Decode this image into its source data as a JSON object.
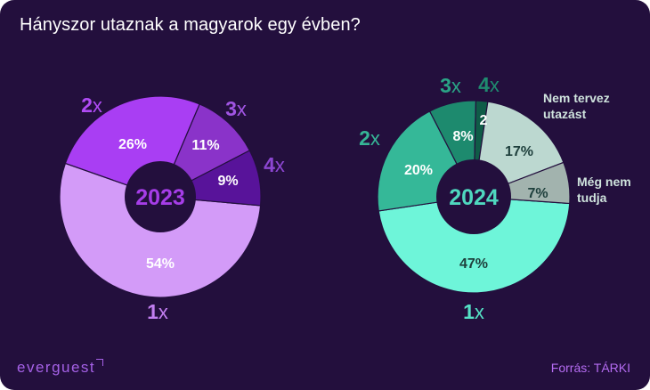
{
  "title": "Hányszor utaznak a magyarok egy évben?",
  "logo_text": "everguest",
  "source": "Forrás: TÁRKI",
  "chart_data": [
    {
      "type": "pie",
      "center_label": "2023",
      "hole": "dark",
      "slices": [
        {
          "category": "1x",
          "value": 54,
          "label": "54%",
          "color": "#d39bf8",
          "label_color": "#ffffff"
        },
        {
          "category": "2x",
          "value": 26,
          "label": "26%",
          "color": "#a93ef3",
          "label_color": "#ffffff"
        },
        {
          "category": "3x",
          "value": 11,
          "label": "11%",
          "color": "#8a33c9",
          "label_color": "#ffffff"
        },
        {
          "category": "4x",
          "value": 9,
          "label": "9%",
          "color": "#58139a",
          "label_color": "#ffffff"
        }
      ],
      "category_labels": [
        {
          "text_number": "1",
          "text_suffix": "x",
          "color": "#c27ef0"
        },
        {
          "text_number": "2",
          "text_suffix": "x",
          "color": "#b04bf5"
        },
        {
          "text_number": "3",
          "text_suffix": "x",
          "color": "#a155e3"
        },
        {
          "text_number": "4",
          "text_suffix": "x",
          "color": "#8c46d1"
        }
      ],
      "center_color": "#a63de8"
    },
    {
      "type": "pie",
      "center_label": "2024",
      "slices": [
        {
          "category": "1x",
          "value": 47,
          "label": "47%",
          "color": "#6ef5d9",
          "label_color": "#1e3f3c"
        },
        {
          "category": "2x",
          "value": 20,
          "label": "20%",
          "color": "#35b898",
          "label_color": "#ffffff"
        },
        {
          "category": "3x",
          "value": 8,
          "label": "8%",
          "color": "#1d8a6e",
          "label_color": "#ffffff"
        },
        {
          "category": "4x",
          "value": 2,
          "label": "2",
          "color": "#0f5c47",
          "label_color": "#ffffff"
        },
        {
          "category": "Nem tervez utazást",
          "value": 17,
          "label": "17%",
          "color": "#bcd8d0",
          "label_color": "#1e3f3c"
        },
        {
          "category": "Még nem tudja",
          "value": 7,
          "label": "7%",
          "color": "#a2b3ae",
          "label_color": "#1e3f3c"
        }
      ],
      "category_labels": [
        {
          "text_number": "1",
          "text_suffix": "x",
          "color": "#55e1c5"
        },
        {
          "text_number": "2",
          "text_suffix": "x",
          "color": "#36b596"
        },
        {
          "text_number": "3",
          "text_suffix": "x",
          "color": "#2aa486"
        },
        {
          "text_number": "4",
          "text_suffix": "x",
          "color": "#1f8a6f"
        },
        {
          "text": [
            "Nem tervez",
            "utazást"
          ],
          "color": "#cfe3dd"
        },
        {
          "text": [
            "Még nem",
            "tudja"
          ],
          "color": "#cfe3dd"
        }
      ],
      "center_color": "#4fd8bf"
    }
  ]
}
